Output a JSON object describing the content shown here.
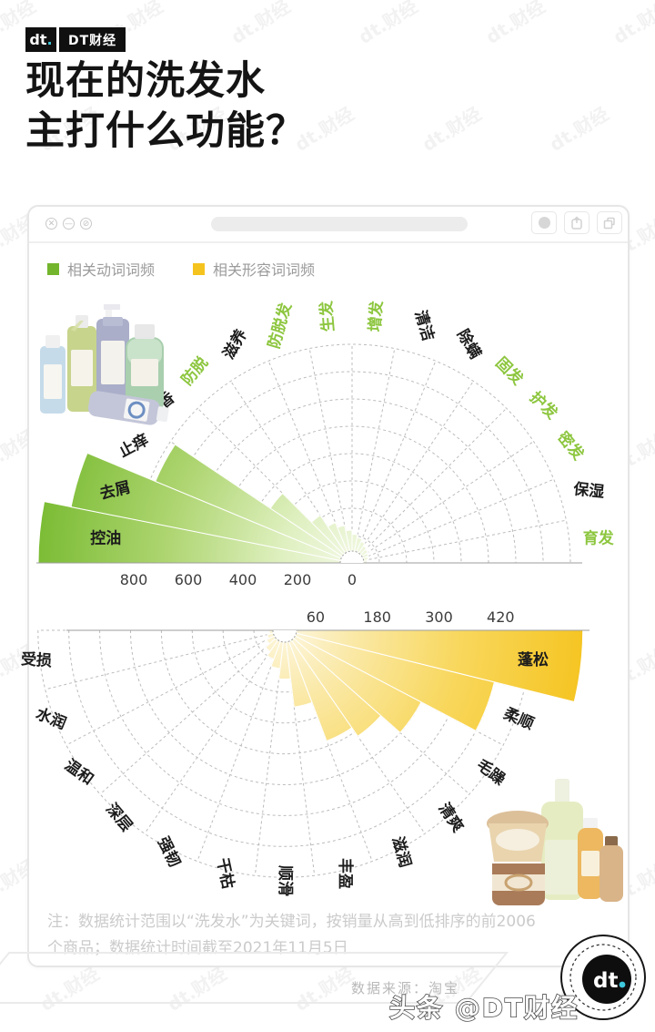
{
  "header": {
    "logo_dt": "dt",
    "logo_dot": ".",
    "logo_brand": "DT财经"
  },
  "title": {
    "line1": "现在的洗发水",
    "line2": "主打什么功能？"
  },
  "window_toolbar": {
    "close_glyph": "✕",
    "minimize_glyph": "—",
    "block_glyph": "⊘"
  },
  "legend": [
    {
      "label": "相关动词词频",
      "color": "#74B52E"
    },
    {
      "label": "相关形容词词频",
      "color": "#F5C31E"
    }
  ],
  "chart_data": [
    {
      "type": "bar",
      "subtype": "polar-semicircle-up",
      "name": "相关动词词频",
      "categories": [
        "控油",
        "去屑",
        "止痒",
        "留香",
        "防脱",
        "滋养",
        "防脱发",
        "生发",
        "增发",
        "清洁",
        "除螨",
        "固发",
        "护发",
        "密发",
        "保湿",
        "育发"
      ],
      "values": [
        1150,
        1050,
        780,
        360,
        210,
        160,
        140,
        120,
        105,
        95,
        85,
        75,
        70,
        65,
        60,
        55
      ],
      "highlighted": [
        "防脱",
        "防脱发",
        "生发",
        "增发",
        "固发",
        "护发",
        "密发",
        "育发"
      ],
      "highlight_color": "#8DC63F",
      "label_color": "#1c1c1c",
      "axis_ticks": [
        800,
        600,
        400,
        200,
        0
      ],
      "ring_step": 100,
      "rings": 8,
      "grid": true,
      "bar_gradient": [
        "#F2F8E4",
        "#DFF0C0",
        "#AED571",
        "#79BB32"
      ]
    },
    {
      "type": "bar",
      "subtype": "polar-semicircle-down",
      "name": "相关形容词词频",
      "categories": [
        "受损",
        "水润",
        "温和",
        "深层",
        "强韧",
        "干枯",
        "顺滑",
        "丰盈",
        "滋润",
        "清爽",
        "毛躁",
        "柔顺",
        "蓬松"
      ],
      "values": [
        30,
        35,
        40,
        50,
        60,
        75,
        95,
        150,
        230,
        250,
        300,
        420,
        580
      ],
      "highlighted": [],
      "highlight_color": "#F5C31E",
      "label_color": "#1c1c1c",
      "axis_ticks": [
        60,
        180,
        300,
        420
      ],
      "ring_step": 60,
      "rings": 8,
      "grid": true,
      "bar_gradient": [
        "#FDF7E0",
        "#FAE9A8",
        "#F8D75C",
        "#F5C420"
      ]
    }
  ],
  "note": {
    "line1": "注：数据统计范围以“洗发水”为关键词，按销量从高到低排序的前2006",
    "line2": "个商品；数据统计时间截至2021年11月5日"
  },
  "footer": {
    "source": "数据来源：淘宝",
    "watermark": "头条 @DT财经",
    "logo_dt": "dt",
    "logo_dot": "."
  },
  "watermark_text": "dt.财经"
}
